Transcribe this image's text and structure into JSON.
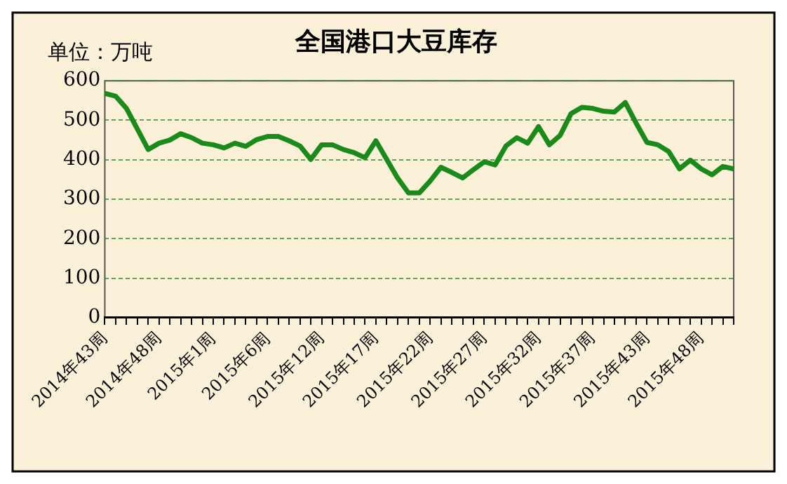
{
  "chart_data": {
    "type": "line",
    "title": "全国港口大豆库存",
    "annotations": [
      "单位：万吨"
    ],
    "categories": [
      "2014年43周",
      null,
      null,
      null,
      null,
      "2014年48周",
      null,
      null,
      null,
      null,
      "2015年1周",
      null,
      null,
      null,
      null,
      "2015年6周",
      null,
      null,
      null,
      null,
      "2015年12周",
      null,
      null,
      null,
      null,
      "2015年17周",
      null,
      null,
      null,
      null,
      "2015年22周",
      null,
      null,
      null,
      null,
      "2015年27周",
      null,
      null,
      null,
      null,
      "2015年32周",
      null,
      null,
      null,
      null,
      "2015年37周",
      null,
      null,
      null,
      null,
      "2015年43周",
      null,
      null,
      null,
      null,
      "2015年48周",
      null,
      null,
      null
    ],
    "series": [
      {
        "color": "#1a8a1a",
        "values": [
          568,
          561,
          530,
          478,
          426,
          442,
          450,
          466,
          456,
          442,
          438,
          430,
          442,
          434,
          451,
          459,
          459,
          448,
          435,
          401,
          438,
          438,
          426,
          418,
          405,
          448,
          401,
          354,
          316,
          316,
          346,
          381,
          368,
          354,
          375,
          395,
          387,
          435,
          456,
          442,
          484,
          438,
          462,
          517,
          533,
          530,
          523,
          521,
          545,
          493,
          444,
          438,
          421,
          377,
          399,
          377,
          362,
          383,
          377
        ]
      }
    ],
    "ylim": [
      0,
      600
    ],
    "yticks": [
      0,
      100,
      200,
      300,
      400,
      500,
      600
    ],
    "grid": "y",
    "legend": false,
    "marker": "none",
    "line_style": "solid"
  }
}
